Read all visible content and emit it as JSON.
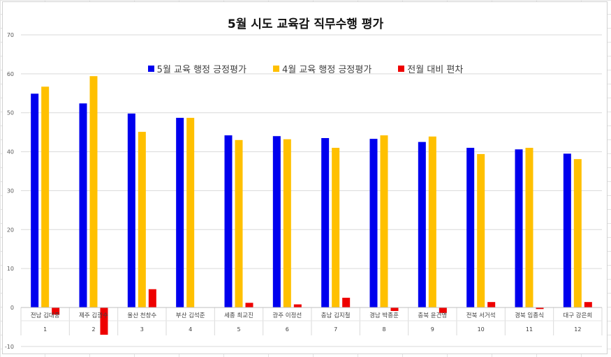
{
  "chart_data": {
    "type": "bar",
    "title": "5월 시도 교육감 직무수행 평가",
    "xlabel": "",
    "ylabel": "",
    "ylim": [
      -10,
      70
    ],
    "yticks": [
      -10,
      0,
      10,
      20,
      30,
      40,
      50,
      60,
      70
    ],
    "grid": true,
    "legend_position": "top",
    "categories": [
      "전남 김대중",
      "제주 김광수",
      "울산 천창수",
      "부산 김석준",
      "세종 최교진",
      "광주 이정선",
      "충남 김지철",
      "경남 박종훈",
      "충북 윤건영",
      "전북 서거석",
      "경북 임종식",
      "대구 강은희"
    ],
    "category_numbers": [
      "1",
      "2",
      "3",
      "4",
      "5",
      "6",
      "7",
      "8",
      "9",
      "10",
      "11",
      "12"
    ],
    "series": [
      {
        "name": "5월 교육 행정 긍정평가",
        "color": "#0000ee",
        "values": [
          54.9,
          52.4,
          49.8,
          48.7,
          44.2,
          44.0,
          43.5,
          43.3,
          42.5,
          41.0,
          40.6,
          39.5
        ]
      },
      {
        "name": "4월 교육 행정 긍정평가",
        "color": "#ffc000",
        "values": [
          56.7,
          59.4,
          45.1,
          48.7,
          43.0,
          43.2,
          41.0,
          44.2,
          43.9,
          39.4,
          41.0,
          38.1
        ]
      },
      {
        "name": "전월 대비 편차",
        "color": "#ee0000",
        "values": [
          -1.8,
          -7.0,
          4.7,
          0.0,
          1.2,
          0.8,
          2.5,
          -0.9,
          -1.4,
          1.4,
          -0.4,
          1.4
        ]
      }
    ]
  }
}
